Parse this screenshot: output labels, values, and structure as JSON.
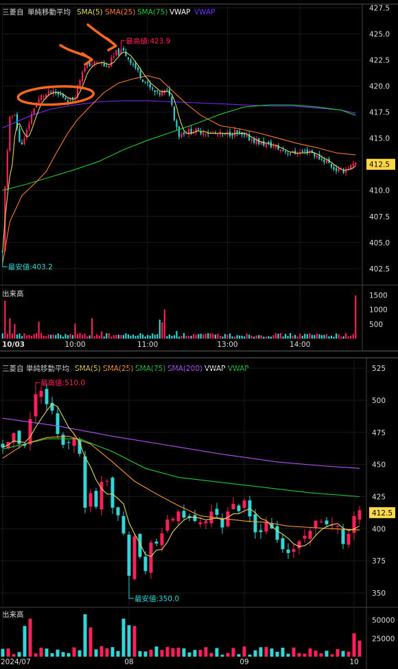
{
  "symbol": "三菱自",
  "indicator_title": "単純移動平均",
  "volume_label": "出来高",
  "colors": {
    "up": "#ff1f5a",
    "down": "#33d6d6",
    "sma5": "#e5d85c",
    "sma25": "#ff7a2e",
    "sma75": "#1fcc3a",
    "sma200": "#b455ff",
    "vwap_text": "#ffffff",
    "vwap": "#7a2bff",
    "price_tag_bg": "#ffd84a",
    "annotation": "#ff6a1a"
  },
  "chart_data": [
    {
      "type": "candlestick",
      "timeframe": "intraday",
      "legend": [
        {
          "label": "SMA(5)",
          "color": "#e5d85c"
        },
        {
          "label": "SMA(25)",
          "color": "#ff7a2e"
        },
        {
          "label": "SMA(75)",
          "color": "#1fcc3a"
        },
        {
          "label": "VWAP",
          "color": "#ffffff"
        },
        {
          "label": "VWAP",
          "color": "#7a2bff"
        }
      ],
      "y_ticks": [
        "427.5",
        "425.0",
        "422.5",
        "420.0",
        "417.5",
        "415.0",
        "412.5",
        "410.0",
        "407.5",
        "405.0",
        "402.5"
      ],
      "ylim": [
        401.5,
        428.0
      ],
      "x_ticks": [
        {
          "t": 0,
          "label": "10/03",
          "bold": true
        },
        {
          "t": 30,
          "label": "10:00",
          "bold": false
        },
        {
          "t": 60,
          "label": "11:00",
          "bold": false
        },
        {
          "t": 93,
          "label": "13:00",
          "bold": false
        },
        {
          "t": 123,
          "label": "14:00",
          "bold": false
        }
      ],
      "n_bars": 147,
      "last_price": "412.5",
      "high_label": "最高値:423.9",
      "low_label": "最安値:403.2",
      "high": {
        "t": 49,
        "price": 423.9
      },
      "low": {
        "t": 0,
        "price": 403.2
      },
      "keypoints": [
        [
          0,
          404
        ],
        [
          1,
          410.5
        ],
        [
          3,
          416.8
        ],
        [
          5,
          417.5
        ],
        [
          7,
          414.5
        ],
        [
          9,
          414.8
        ],
        [
          11,
          416.5
        ],
        [
          13,
          418
        ],
        [
          16,
          419
        ],
        [
          20,
          419.4
        ],
        [
          25,
          419
        ],
        [
          28,
          418.6
        ],
        [
          30,
          419.2
        ],
        [
          33,
          421.5
        ],
        [
          36,
          422.1
        ],
        [
          40,
          422.3
        ],
        [
          43,
          421.8
        ],
        [
          47,
          423.2
        ],
        [
          50,
          423.3
        ],
        [
          54,
          422.1
        ],
        [
          57,
          421
        ],
        [
          61,
          419.8
        ],
        [
          64,
          419.2
        ],
        [
          67,
          419.5
        ],
        [
          69,
          419.3
        ],
        [
          71,
          417
        ],
        [
          73,
          415.3
        ],
        [
          75,
          415.6
        ],
        [
          79,
          415.7
        ],
        [
          84,
          415.6
        ],
        [
          88,
          415.4
        ],
        [
          92,
          415.3
        ],
        [
          96,
          415.6
        ],
        [
          99,
          415.2
        ],
        [
          103,
          414.9
        ],
        [
          107,
          414.5
        ],
        [
          111,
          414.3
        ],
        [
          115,
          413.9
        ],
        [
          119,
          413.6
        ],
        [
          123,
          413.6
        ],
        [
          127,
          413.8
        ],
        [
          130,
          413.2
        ],
        [
          134,
          412.8
        ],
        [
          137,
          412.1
        ],
        [
          140,
          411.8
        ],
        [
          143,
          412.2
        ],
        [
          146,
          412.5
        ]
      ],
      "sma25": [
        [
          0,
          403
        ],
        [
          3,
          407
        ],
        [
          8,
          409.5
        ],
        [
          13,
          410.6
        ],
        [
          18,
          411.8
        ],
        [
          22,
          413.5
        ],
        [
          27,
          415.5
        ],
        [
          31,
          416.8
        ],
        [
          36,
          418
        ],
        [
          42,
          419.4
        ],
        [
          48,
          420.3
        ],
        [
          54,
          420.7
        ],
        [
          60,
          421
        ],
        [
          65,
          420.7
        ],
        [
          70,
          419.6
        ],
        [
          76,
          418.3
        ],
        [
          82,
          417.2
        ],
        [
          90,
          416.2
        ],
        [
          98,
          415.9
        ],
        [
          106,
          415.5
        ],
        [
          114,
          415
        ],
        [
          122,
          414.5
        ],
        [
          130,
          414.1
        ],
        [
          138,
          413.6
        ],
        [
          146,
          413.4
        ]
      ],
      "sma75": [
        [
          0,
          410
        ],
        [
          10,
          410.6
        ],
        [
          20,
          411.3
        ],
        [
          30,
          412
        ],
        [
          40,
          412.8
        ],
        [
          50,
          413.9
        ],
        [
          60,
          414.8
        ],
        [
          70,
          415.6
        ],
        [
          80,
          416.4
        ],
        [
          90,
          417.3
        ],
        [
          100,
          418
        ],
        [
          110,
          418.2
        ],
        [
          120,
          418.2
        ],
        [
          130,
          418
        ],
        [
          140,
          417.7
        ],
        [
          146,
          417.2
        ]
      ],
      "vwap": [
        [
          0,
          416
        ],
        [
          6,
          416.6
        ],
        [
          12,
          417.2
        ],
        [
          20,
          417.8
        ],
        [
          30,
          418.2
        ],
        [
          40,
          418.5
        ],
        [
          50,
          418.6
        ],
        [
          60,
          418.6
        ],
        [
          70,
          418.5
        ],
        [
          80,
          418.4
        ],
        [
          90,
          418.3
        ],
        [
          100,
          418.2
        ],
        [
          110,
          418.1
        ],
        [
          120,
          418.1
        ],
        [
          130,
          417.9
        ],
        [
          140,
          417.7
        ],
        [
          146,
          417.4
        ]
      ],
      "volume": {
        "y_ticks": [
          1500,
          1000,
          500
        ],
        "ylim": [
          0,
          1600
        ],
        "spikes": [
          [
            1,
            1300
          ],
          [
            3,
            700
          ],
          [
            5,
            500
          ],
          [
            15,
            580
          ],
          [
            30,
            520
          ],
          [
            37,
            700
          ],
          [
            41,
            250
          ],
          [
            65,
            650
          ],
          [
            66,
            560
          ],
          [
            67,
            1000
          ],
          [
            72,
            260
          ],
          [
            146,
            1480
          ]
        ]
      }
    },
    {
      "type": "candlestick",
      "timeframe": "daily",
      "legend": [
        {
          "label": "SMA(5)",
          "color": "#e5d85c"
        },
        {
          "label": "SMA(25)",
          "color": "#ff9a2e"
        },
        {
          "label": "SMA(75)",
          "color": "#1fcc3a"
        },
        {
          "label": "SMA(200)",
          "color": "#b455ff"
        },
        {
          "label": "VWAP",
          "color": "#ffffff"
        },
        {
          "label": "VWAP",
          "color": "#1fcc3a"
        }
      ],
      "y_ticks": [
        "525",
        "500",
        "475",
        "450",
        "425",
        "400",
        "375",
        "350"
      ],
      "ylim": [
        342,
        532
      ],
      "x_ticks": [
        {
          "t": 0,
          "label": "2024/07",
          "bold": false
        },
        {
          "t": 23,
          "label": "08",
          "bold": false
        },
        {
          "t": 44,
          "label": "09",
          "bold": false
        },
        {
          "t": 64,
          "label": "10",
          "bold": false
        }
      ],
      "n_bars": 66,
      "last_price": "412.5",
      "high_label": "最高値:510.0",
      "low_label": "最安値:350.0",
      "high": {
        "t": 6,
        "price": 510
      },
      "low": {
        "t": 23,
        "price": 350
      },
      "closes": [
        [
          0,
          464
        ],
        [
          2,
          470
        ],
        [
          4,
          462
        ],
        [
          5,
          488
        ],
        [
          6,
          505
        ],
        [
          7,
          505
        ],
        [
          8,
          495
        ],
        [
          9,
          488
        ],
        [
          10,
          477
        ],
        [
          11,
          468
        ],
        [
          12,
          466
        ],
        [
          13,
          470
        ],
        [
          14,
          460
        ],
        [
          15,
          420
        ],
        [
          16,
          425
        ],
        [
          17,
          415
        ],
        [
          18,
          440
        ],
        [
          19,
          438
        ],
        [
          20,
          420
        ],
        [
          21,
          412
        ],
        [
          22,
          400
        ],
        [
          23,
          367
        ],
        [
          24,
          395
        ],
        [
          25,
          378
        ],
        [
          26,
          368
        ],
        [
          27,
          385
        ],
        [
          28,
          390
        ],
        [
          29,
          395
        ],
        [
          30,
          405
        ],
        [
          31,
          410
        ],
        [
          32,
          413
        ],
        [
          33,
          410
        ],
        [
          34,
          405
        ],
        [
          35,
          404
        ],
        [
          36,
          405
        ],
        [
          37,
          402
        ],
        [
          38,
          410
        ],
        [
          39,
          408
        ],
        [
          40,
          405
        ],
        [
          41,
          412
        ],
        [
          42,
          415
        ],
        [
          43,
          410
        ],
        [
          44,
          420
        ],
        [
          45,
          408
        ],
        [
          46,
          400
        ],
        [
          47,
          395
        ],
        [
          48,
          405
        ],
        [
          49,
          400
        ],
        [
          50,
          392
        ],
        [
          51,
          386
        ],
        [
          52,
          380
        ],
        [
          53,
          385
        ],
        [
          54,
          390
        ],
        [
          55,
          398
        ],
        [
          56,
          400
        ],
        [
          57,
          402
        ],
        [
          58,
          404
        ],
        [
          59,
          400
        ],
        [
          60,
          405
        ],
        [
          61,
          398
        ],
        [
          62,
          386
        ],
        [
          63,
          400
        ],
        [
          64,
          408
        ],
        [
          65,
          414
        ]
      ],
      "sma25": [
        [
          0,
          455
        ],
        [
          4,
          466
        ],
        [
          8,
          471
        ],
        [
          12,
          472
        ],
        [
          16,
          466
        ],
        [
          20,
          452
        ],
        [
          24,
          437
        ],
        [
          28,
          427
        ],
        [
          32,
          418
        ],
        [
          36,
          410
        ],
        [
          40,
          408
        ],
        [
          44,
          406
        ],
        [
          48,
          405
        ],
        [
          52,
          402
        ],
        [
          56,
          401
        ],
        [
          60,
          400
        ],
        [
          65,
          399
        ]
      ],
      "sma75": [
        [
          0,
          462
        ],
        [
          8,
          470
        ],
        [
          14,
          470
        ],
        [
          20,
          460
        ],
        [
          26,
          447
        ],
        [
          32,
          440
        ],
        [
          40,
          436
        ],
        [
          48,
          432
        ],
        [
          56,
          428
        ],
        [
          65,
          425
        ]
      ],
      "sma200": [
        [
          0,
          486
        ],
        [
          10,
          480
        ],
        [
          20,
          472
        ],
        [
          30,
          465
        ],
        [
          40,
          458
        ],
        [
          50,
          452
        ],
        [
          58,
          449
        ],
        [
          65,
          447
        ]
      ],
      "volume": {
        "y_ticks": [
          50000,
          25000
        ],
        "ylim": [
          0,
          60000
        ],
        "spikes": [
          [
            4,
            42000
          ],
          [
            5,
            52000
          ],
          [
            15,
            58000
          ],
          [
            16,
            40000
          ],
          [
            22,
            52000
          ],
          [
            23,
            43000
          ],
          [
            24,
            42000
          ],
          [
            64,
            32000
          ],
          [
            65,
            22000
          ]
        ]
      }
    }
  ]
}
